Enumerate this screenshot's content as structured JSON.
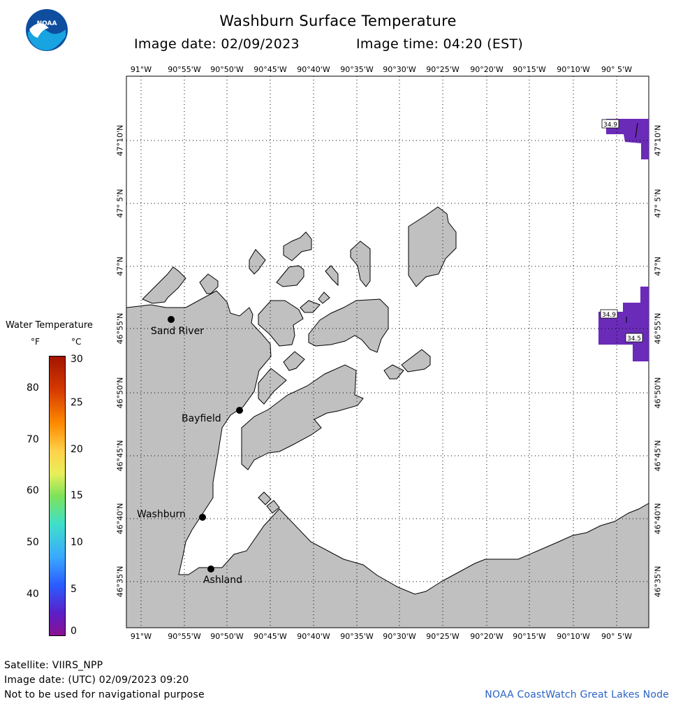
{
  "header": {
    "title": "Washburn Surface Temperature",
    "image_date": "Image date: 02/09/2023",
    "image_time": "Image time: 04:20 (EST)",
    "logo_text": "NOAA"
  },
  "map": {
    "lon_labels": [
      "91°W",
      "90°55'W",
      "90°50'W",
      "90°45'W",
      "90°40'W",
      "90°35'W",
      "90°30'W",
      "90°25'W",
      "90°20'W",
      "90°15'W",
      "90°10'W",
      "90° 5'W"
    ],
    "lat_labels": [
      "47°10'N",
      "47° 5'N",
      "47°N",
      "46°55'N",
      "46°50'N",
      "46°45'N",
      "46°40'N",
      "46°35'N"
    ],
    "places": [
      {
        "name": "Sand River"
      },
      {
        "name": "Bayfield"
      },
      {
        "name": "Washburn"
      },
      {
        "name": "Ashland"
      }
    ],
    "temperature_labels": [
      "34.9",
      "34.9",
      "34.5"
    ],
    "land_color": "#c0c0c0",
    "water_color": "#ffffff",
    "cold_water_color": "#6a2bb8"
  },
  "legend": {
    "title": "Water Temperature",
    "unit_f": "°F",
    "unit_c": "°C",
    "f_ticks": [
      "80",
      "70",
      "60",
      "50",
      "40"
    ],
    "c_ticks": [
      "30",
      "25",
      "20",
      "15",
      "10",
      "5",
      "0"
    ],
    "colors": [
      "#b01500",
      "#ff7a00",
      "#ffe36a",
      "#39d94a",
      "#4ad7e6",
      "#1a6bff",
      "#5a1fc7",
      "#8a1090"
    ]
  },
  "footer": {
    "satellite": "Satellite: VIIRS_NPP",
    "utc_date": "Image date: (UTC) 02/09/2023  09:20",
    "disclaimer": "Not to be used for navigational purpose",
    "credit": "NOAA CoastWatch Great Lakes Node"
  }
}
